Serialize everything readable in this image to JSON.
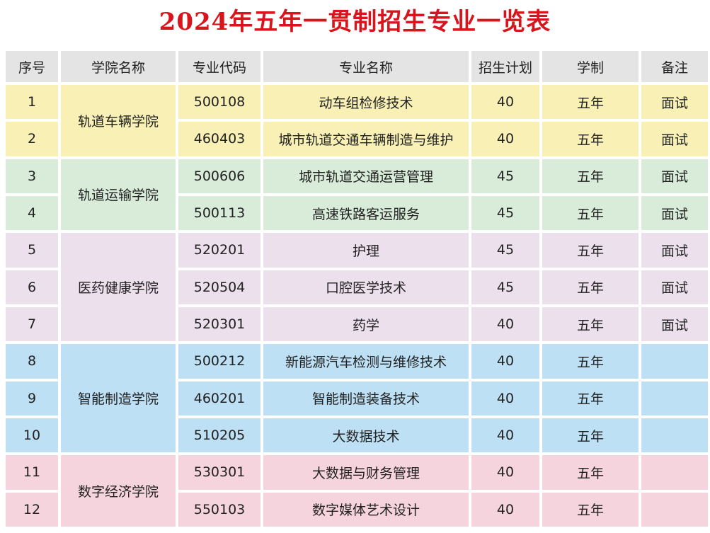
{
  "title": "2024年五年一贯制招生专业一览表",
  "table": {
    "headers": [
      "序号",
      "学院名称",
      "专业代码",
      "专业名称",
      "招生计划",
      "学制",
      "备注"
    ],
    "colors": {
      "yellow": "#f8f0b4",
      "green": "#d9ecd9",
      "purple": "#ece0ec",
      "blue": "#bde0f4",
      "pink": "#f6d4de",
      "header": "#e4e4e4",
      "title": "#d8141c"
    },
    "colleges": [
      "轨道车辆学院",
      "轨道运输学院",
      "医药健康学院",
      "智能制造学院",
      "数字经济学院"
    ],
    "rows": [
      {
        "no": "1",
        "code": "500108",
        "major": "动车组检修技术",
        "plan": "40",
        "years": "五年",
        "note": "面试"
      },
      {
        "no": "2",
        "code": "460403",
        "major": "城市轨道交通车辆制造与维护",
        "plan": "40",
        "years": "五年",
        "note": "面试"
      },
      {
        "no": "3",
        "code": "500606",
        "major": "城市轨道交通运营管理",
        "plan": "45",
        "years": "五年",
        "note": "面试"
      },
      {
        "no": "4",
        "code": "500113",
        "major": "高速铁路客运服务",
        "plan": "45",
        "years": "五年",
        "note": "面试"
      },
      {
        "no": "5",
        "code": "520201",
        "major": "护理",
        "plan": "45",
        "years": "五年",
        "note": "面试"
      },
      {
        "no": "6",
        "code": "520504",
        "major": "口腔医学技术",
        "plan": "45",
        "years": "五年",
        "note": "面试"
      },
      {
        "no": "7",
        "code": "520301",
        "major": "药学",
        "plan": "40",
        "years": "五年",
        "note": "面试"
      },
      {
        "no": "8",
        "code": "500212",
        "major": "新能源汽车检测与维修技术",
        "plan": "40",
        "years": "五年",
        "note": ""
      },
      {
        "no": "9",
        "code": "460201",
        "major": "智能制造装备技术",
        "plan": "40",
        "years": "五年",
        "note": ""
      },
      {
        "no": "10",
        "code": "510205",
        "major": "大数据技术",
        "plan": "40",
        "years": "五年",
        "note": ""
      },
      {
        "no": "11",
        "code": "530301",
        "major": "大数据与财务管理",
        "plan": "40",
        "years": "五年",
        "note": ""
      },
      {
        "no": "12",
        "code": "550103",
        "major": "数字媒体艺术设计",
        "plan": "40",
        "years": "五年",
        "note": ""
      }
    ]
  }
}
